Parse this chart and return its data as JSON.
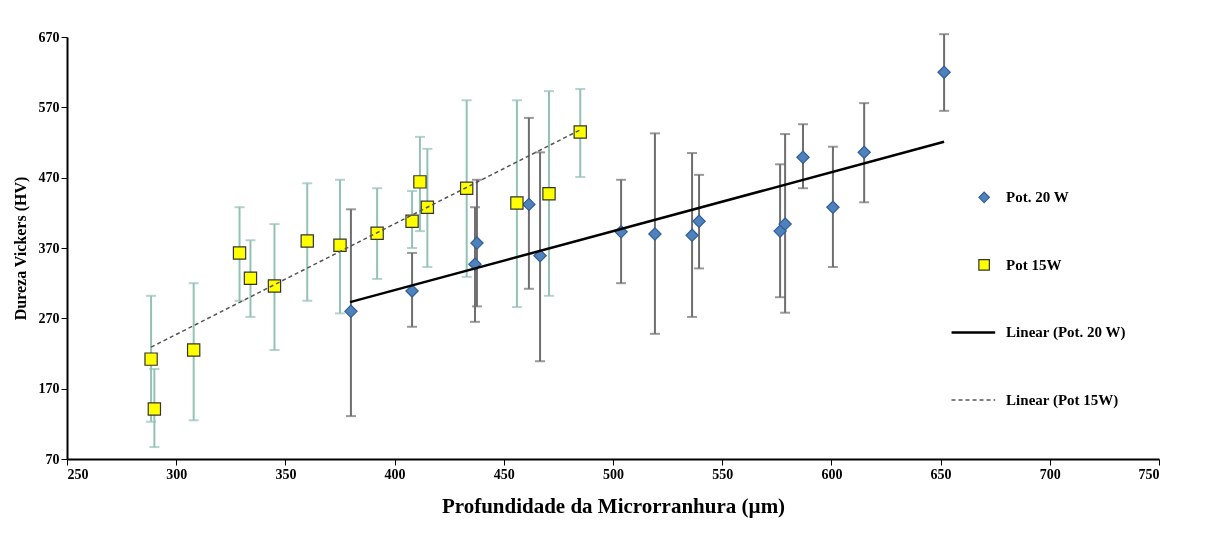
{
  "chart_data": {
    "type": "scatter",
    "xlabel": "Profundidade da Microrranhura (µm)",
    "ylabel": "Dureza Vickers (HV)",
    "xlim": [
      250,
      750
    ],
    "xticks": [
      250,
      300,
      350,
      400,
      450,
      500,
      550,
      600,
      650,
      700,
      750
    ],
    "ylim": [
      70,
      670
    ],
    "yticks": [
      70,
      170,
      270,
      370,
      470,
      570,
      670
    ],
    "grid": false,
    "legend": "right",
    "series": [
      {
        "name": "Pot. 20 W",
        "type": "scatter",
        "marker": "diamond",
        "color": "#4f81bd",
        "x": [
          380,
          408,
          437.7,
          436.8,
          461.5,
          466.6,
          503.7,
          519.2,
          536.2,
          539.4,
          576.5,
          578.8,
          587,
          600.7,
          615,
          651.6
        ],
        "values": [
          280,
          309,
          377,
          347,
          432,
          359,
          393,
          390,
          388,
          408,
          394,
          404,
          499,
          428,
          506,
          620
        ],
        "errors": [
          [
            131,
            425
          ],
          [
            258,
            363
          ],
          [
            287,
            467
          ],
          [
            265,
            428
          ],
          [
            312,
            555
          ],
          [
            209,
            506
          ],
          [
            320,
            467
          ],
          [
            248,
            533
          ],
          [
            272,
            505
          ],
          [
            341,
            474
          ],
          [
            300,
            489
          ],
          [
            278,
            532
          ],
          [
            455,
            546
          ],
          [
            343,
            514
          ],
          [
            435,
            576
          ],
          [
            565,
            674
          ]
        ]
      },
      {
        "name": "Pot 15W",
        "type": "scatter",
        "marker": "square",
        "color": "#ffff00",
        "x": [
          288.5,
          290,
          308,
          329,
          334,
          345,
          360,
          375,
          392,
          408,
          411.6,
          415,
          433,
          456,
          470.7,
          485
        ],
        "values": [
          212,
          141,
          225,
          363,
          327,
          316,
          380,
          374,
          391,
          408,
          464,
          428,
          455,
          434,
          447,
          535
        ],
        "errors": [
          [
            123,
            302
          ],
          [
            87,
            198
          ],
          [
            125,
            320
          ],
          [
            295,
            428
          ],
          [
            272,
            381
          ],
          [
            225,
            404
          ],
          [
            295,
            462
          ],
          [
            277,
            467
          ],
          [
            326,
            455
          ],
          [
            370,
            451
          ],
          [
            394,
            528
          ],
          [
            343,
            511
          ],
          [
            329,
            580
          ],
          [
            286,
            580
          ],
          [
            302,
            593
          ],
          [
            471,
            596
          ]
        ]
      },
      {
        "name": "Linear (Pot. 20 W)",
        "type": "line",
        "line_style": "solid",
        "color": "#000000",
        "x": [
          379.6,
          651.6
        ],
        "values": [
          293,
          521
        ]
      },
      {
        "name": "Linear (Pot 15W)",
        "type": "line",
        "line_style": "dashed",
        "color": "#555555",
        "x": [
          288.5,
          485
        ],
        "values": [
          229,
          538
        ]
      }
    ]
  }
}
